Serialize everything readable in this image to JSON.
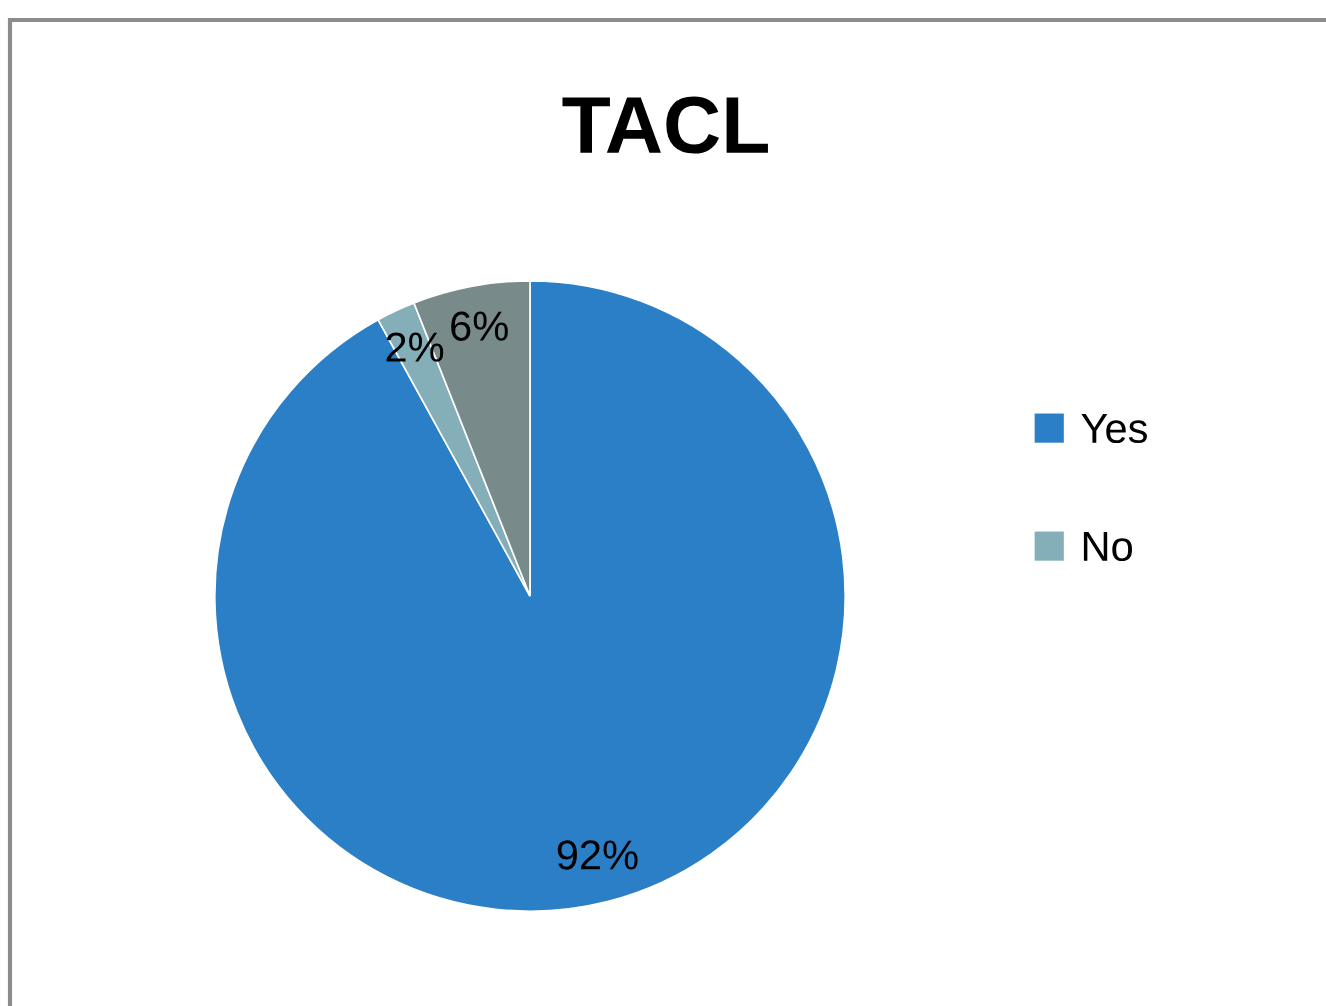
{
  "chart_data": {
    "type": "pie",
    "title": "TACL",
    "categories": [
      "Yes",
      "No",
      null
    ],
    "values": [
      92,
      2,
      6
    ],
    "colors": [
      "#2a7fc6",
      "#84aeb8",
      "#798a8a"
    ],
    "value_labels": [
      "92%",
      "2%",
      "6%"
    ],
    "legend": "right"
  }
}
